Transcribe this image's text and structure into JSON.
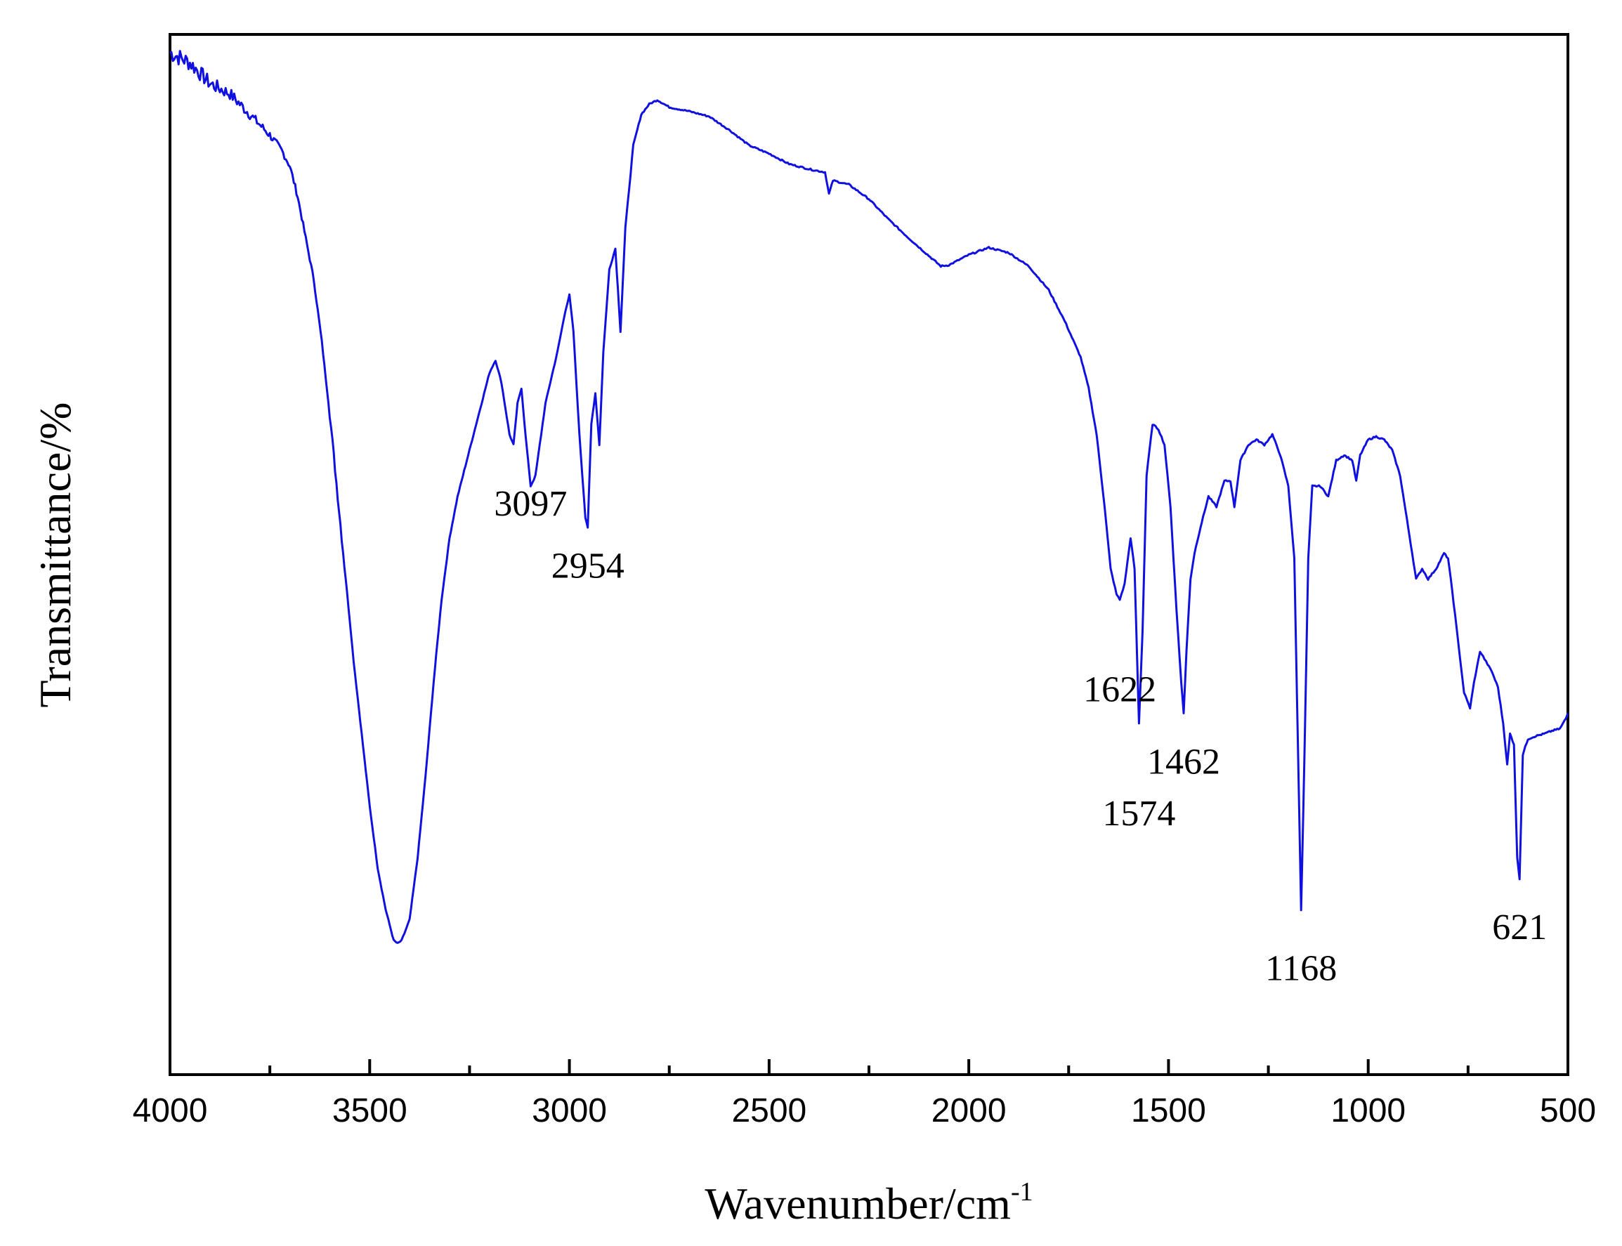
{
  "chart_data": {
    "type": "line",
    "xlabel": "Wavenumber/cm",
    "xlabel_superscript": "-1",
    "ylabel": "Transmittance/%",
    "xlim": [
      4000,
      500
    ],
    "x_reversed": true,
    "ylim": [
      0,
      100
    ],
    "y_ticks_shown": false,
    "grid": false,
    "line_color": "#1010e0",
    "x_ticks": [
      {
        "value": 4000,
        "label": "4000"
      },
      {
        "value": 3500,
        "label": "3500"
      },
      {
        "value": 3000,
        "label": "3000"
      },
      {
        "value": 2500,
        "label": "2500"
      },
      {
        "value": 2000,
        "label": "2000"
      },
      {
        "value": 1500,
        "label": "1500"
      },
      {
        "value": 1000,
        "label": "1000"
      },
      {
        "value": 500,
        "label": "500"
      }
    ],
    "x_minor_ticks": [
      3750,
      3250,
      2750,
      2250,
      1750,
      1250,
      750
    ],
    "annotations": [
      {
        "text": "3097",
        "x": 3097,
        "y": 57
      },
      {
        "text": "2954",
        "x": 2954,
        "y": 51
      },
      {
        "text": "1622",
        "x": 1622,
        "y": 39
      },
      {
        "text": "1574",
        "x": 1574,
        "y": 27
      },
      {
        "text": "1462",
        "x": 1462,
        "y": 32
      },
      {
        "text": "1168",
        "x": 1168,
        "y": 12
      },
      {
        "text": "621",
        "x": 621,
        "y": 16
      }
    ],
    "series": [
      {
        "points": [
          [
            4000,
            99
          ],
          [
            3950,
            98
          ],
          [
            3900,
            96
          ],
          [
            3850,
            95
          ],
          [
            3800,
            93
          ],
          [
            3750,
            91
          ],
          [
            3720,
            89.5
          ],
          [
            3700,
            88
          ],
          [
            3680,
            85
          ],
          [
            3660,
            81
          ],
          [
            3640,
            77
          ],
          [
            3620,
            71
          ],
          [
            3600,
            64
          ],
          [
            3580,
            56
          ],
          [
            3560,
            48
          ],
          [
            3540,
            40
          ],
          [
            3520,
            33
          ],
          [
            3500,
            26
          ],
          [
            3480,
            20
          ],
          [
            3460,
            16
          ],
          [
            3440,
            13
          ],
          [
            3430,
            12.7
          ],
          [
            3420,
            13
          ],
          [
            3400,
            15
          ],
          [
            3380,
            21
          ],
          [
            3360,
            29
          ],
          [
            3340,
            38
          ],
          [
            3320,
            46
          ],
          [
            3300,
            52
          ],
          [
            3280,
            56
          ],
          [
            3260,
            59
          ],
          [
            3240,
            62
          ],
          [
            3220,
            65
          ],
          [
            3200,
            68
          ],
          [
            3185,
            69.2
          ],
          [
            3170,
            67
          ],
          [
            3150,
            62
          ],
          [
            3140,
            61
          ],
          [
            3130,
            65
          ],
          [
            3120,
            66.5
          ],
          [
            3110,
            62
          ],
          [
            3097,
            57
          ],
          [
            3085,
            58
          ],
          [
            3060,
            65
          ],
          [
            3030,
            70
          ],
          [
            3010,
            74
          ],
          [
            3000,
            75.5
          ],
          [
            2990,
            72
          ],
          [
            2975,
            62
          ],
          [
            2960,
            54
          ],
          [
            2954,
            53
          ],
          [
            2945,
            63
          ],
          [
            2935,
            66
          ],
          [
            2925,
            61
          ],
          [
            2915,
            70
          ],
          [
            2900,
            78
          ],
          [
            2885,
            80
          ],
          [
            2872,
            72
          ],
          [
            2860,
            82
          ],
          [
            2840,
            90
          ],
          [
            2820,
            93
          ],
          [
            2800,
            94
          ],
          [
            2780,
            94.4
          ],
          [
            2750,
            93.7
          ],
          [
            2700,
            93.3
          ],
          [
            2650,
            92.8
          ],
          [
            2600,
            91.5
          ],
          [
            2550,
            90
          ],
          [
            2500,
            89.2
          ],
          [
            2450,
            88.2
          ],
          [
            2400,
            87.7
          ],
          [
            2360,
            87.4
          ],
          [
            2350,
            85.3
          ],
          [
            2340,
            86.6
          ],
          [
            2300,
            86.2
          ],
          [
            2250,
            84.8
          ],
          [
            2200,
            82.8
          ],
          [
            2150,
            81
          ],
          [
            2100,
            79.3
          ],
          [
            2070,
            78.3
          ],
          [
            2050,
            78.4
          ],
          [
            2000,
            79.4
          ],
          [
            1950,
            80.1
          ],
          [
            1900,
            79.6
          ],
          [
            1850,
            78.3
          ],
          [
            1800,
            76
          ],
          [
            1760,
            73
          ],
          [
            1720,
            69.5
          ],
          [
            1700,
            66.5
          ],
          [
            1680,
            62
          ],
          [
            1660,
            55
          ],
          [
            1645,
            49
          ],
          [
            1630,
            46.5
          ],
          [
            1622,
            46
          ],
          [
            1610,
            47.5
          ],
          [
            1595,
            52
          ],
          [
            1585,
            49
          ],
          [
            1574,
            34
          ],
          [
            1565,
            43
          ],
          [
            1555,
            58
          ],
          [
            1540,
            63
          ],
          [
            1525,
            62.5
          ],
          [
            1510,
            61
          ],
          [
            1495,
            55
          ],
          [
            1480,
            45
          ],
          [
            1468,
            38
          ],
          [
            1462,
            35
          ],
          [
            1455,
            41
          ],
          [
            1445,
            48
          ],
          [
            1435,
            50.5
          ],
          [
            1420,
            53
          ],
          [
            1400,
            56
          ],
          [
            1380,
            55
          ],
          [
            1360,
            57.5
          ],
          [
            1345,
            57.5
          ],
          [
            1335,
            55
          ],
          [
            1320,
            59.5
          ],
          [
            1300,
            61
          ],
          [
            1280,
            61.5
          ],
          [
            1260,
            61
          ],
          [
            1240,
            62
          ],
          [
            1220,
            60
          ],
          [
            1200,
            57
          ],
          [
            1185,
            50
          ],
          [
            1175,
            30
          ],
          [
            1168,
            16
          ],
          [
            1160,
            30
          ],
          [
            1150,
            50
          ],
          [
            1140,
            57
          ],
          [
            1120,
            57
          ],
          [
            1100,
            56
          ],
          [
            1080,
            59.5
          ],
          [
            1060,
            60
          ],
          [
            1040,
            59.5
          ],
          [
            1030,
            57.5
          ],
          [
            1020,
            60
          ],
          [
            1000,
            61.5
          ],
          [
            980,
            61.8
          ],
          [
            960,
            61.5
          ],
          [
            940,
            60.5
          ],
          [
            920,
            58
          ],
          [
            900,
            53
          ],
          [
            880,
            48
          ],
          [
            865,
            49
          ],
          [
            850,
            48
          ],
          [
            830,
            49
          ],
          [
            810,
            50.5
          ],
          [
            800,
            50
          ],
          [
            790,
            47
          ],
          [
            775,
            42
          ],
          [
            760,
            37
          ],
          [
            745,
            35.5
          ],
          [
            735,
            38
          ],
          [
            720,
            41
          ],
          [
            705,
            40
          ],
          [
            690,
            39
          ],
          [
            675,
            37.5
          ],
          [
            662,
            34
          ],
          [
            652,
            30
          ],
          [
            645,
            33
          ],
          [
            635,
            32
          ],
          [
            627,
            21
          ],
          [
            621,
            19
          ],
          [
            613,
            31
          ],
          [
            600,
            32.5
          ],
          [
            580,
            32.8
          ],
          [
            560,
            33
          ],
          [
            540,
            33.3
          ],
          [
            520,
            33.5
          ],
          [
            505,
            34.5
          ],
          [
            500,
            35
          ]
        ]
      }
    ]
  }
}
